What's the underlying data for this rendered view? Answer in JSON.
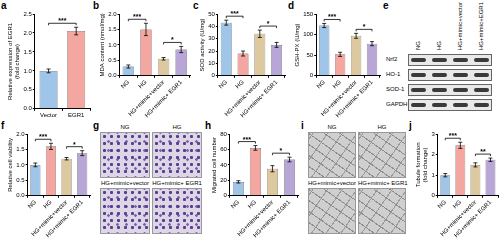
{
  "chart_data": [
    {
      "panel_label": "a",
      "type": "bar",
      "y_label": [
        "Relative expression of EGR1",
        "(fold change)"
      ],
      "categories": [
        "Vector",
        "EGR1"
      ],
      "values": [
        1.0,
        2.05
      ],
      "errors": [
        0.05,
        0.1
      ],
      "colors": [
        "#9fc5e8",
        "#f4a6a0"
      ],
      "ylim": [
        0,
        2.5
      ],
      "yticks": [
        {
          "value": 0,
          "label": "0.0"
        },
        0.5,
        {
          "value": 1,
          "label": "1.0"
        },
        1.5,
        {
          "value": 2,
          "label": "2.0"
        },
        2.5
      ],
      "grid": false,
      "annotations": [
        {
          "text": "***",
          "between": [
            "Vector",
            "EGR1"
          ]
        }
      ]
    },
    {
      "panel_label": "b",
      "type": "bar",
      "y_label": "MDA content (nmol/mg)",
      "categories": [
        "NG",
        "HG",
        "HG+mimic+vector",
        "HG+mimic+ EGR1"
      ],
      "values": [
        0.3,
        1.5,
        0.55,
        0.85
      ],
      "errors": [
        0.05,
        0.2,
        0.04,
        0.1
      ],
      "colors": [
        "#9fc5e8",
        "#f4a6a0",
        "#dcc9a0",
        "#b7a6d6"
      ],
      "ylim": [
        0,
        2
      ],
      "yticks": [
        {
          "value": 0,
          "label": "0.0"
        },
        0.5,
        {
          "value": 1,
          "label": "1.0"
        },
        1.5,
        {
          "value": 2,
          "label": "2.0"
        }
      ],
      "grid": false,
      "annotations": [
        {
          "text": "***",
          "between": [
            "NG",
            "HG"
          ]
        },
        {
          "text": "*",
          "between": [
            "HG+mimic+vector",
            "HG+mimic+ EGR1"
          ]
        }
      ]
    },
    {
      "panel_label": "c",
      "type": "bar",
      "y_label": "SOD activity (U/mg)",
      "categories": [
        "NG",
        "HG",
        "HG+mimic+vector",
        "HG+mimic+ EGR1"
      ],
      "values": [
        43,
        18,
        34,
        25
      ],
      "errors": [
        2,
        2,
        3,
        2
      ],
      "colors": [
        "#9fc5e8",
        "#f4a6a0",
        "#dcc9a0",
        "#b7a6d6"
      ],
      "ylim": [
        0,
        50
      ],
      "yticks": [
        0,
        10,
        20,
        30,
        40,
        50
      ],
      "grid": false,
      "annotations": [
        {
          "text": "***",
          "between": [
            "NG",
            "HG"
          ]
        },
        {
          "text": "*",
          "between": [
            "HG+mimic+vector",
            "HG+mimic+ EGR1"
          ]
        }
      ]
    },
    {
      "panel_label": "d",
      "type": "bar",
      "y_label": "GSH-PX (U/mg)",
      "categories": [
        "NG",
        "HG",
        "HG+mimic+vector",
        "HG+mimic+ EGR1"
      ],
      "values": [
        122,
        52,
        97,
        78
      ],
      "errors": [
        5,
        5,
        6,
        5
      ],
      "colors": [
        "#9fc5e8",
        "#f4a6a0",
        "#dcc9a0",
        "#b7a6d6"
      ],
      "ylim": [
        0,
        150
      ],
      "yticks": [
        0,
        50,
        100,
        150
      ],
      "grid": false,
      "annotations": [
        {
          "text": "***",
          "between": [
            "NG",
            "HG"
          ]
        },
        {
          "text": "*",
          "between": [
            "HG+mimic+vector",
            "HG+mimic+ EGR1"
          ]
        }
      ]
    },
    {
      "panel_label": "f",
      "type": "bar",
      "y_label": "Relative cell viability",
      "categories": [
        "NG",
        "HG",
        "HG+mimic+vector",
        "HG+mimic+ EGR1"
      ],
      "values": [
        1.0,
        1.6,
        1.2,
        1.38
      ],
      "errors": [
        0.06,
        0.1,
        0.04,
        0.08
      ],
      "colors": [
        "#9fc5e8",
        "#f4a6a0",
        "#dcc9a0",
        "#b7a6d6"
      ],
      "ylim": [
        0,
        2
      ],
      "yticks": [
        {
          "value": 0,
          "label": "0.0"
        },
        0.5,
        {
          "value": 1,
          "label": "1.0"
        },
        1.5,
        {
          "value": 2,
          "label": "2.0"
        }
      ],
      "grid": false,
      "annotations": [
        {
          "text": "***",
          "between": [
            "NG",
            "HG"
          ]
        },
        {
          "text": "*",
          "between": [
            "HG+mimic+vector",
            "HG+mimic+ EGR1"
          ]
        }
      ]
    },
    {
      "panel_label": "h",
      "type": "bar",
      "y_label": "Migrated cell number",
      "categories": [
        "NG",
        "HG",
        "HG+mimic+vector",
        "HG+mimic+ EGR1"
      ],
      "values": [
        18,
        62,
        35,
        47
      ],
      "errors": [
        1.5,
        3,
        4,
        3
      ],
      "colors": [
        "#9fc5e8",
        "#f4a6a0",
        "#dcc9a0",
        "#b7a6d6"
      ],
      "ylim": [
        0,
        80
      ],
      "yticks": [
        0,
        20,
        40,
        60,
        80
      ],
      "grid": false,
      "annotations": [
        {
          "text": "***",
          "between": [
            "NG",
            "HG"
          ]
        },
        {
          "text": "*",
          "between": [
            "HG+mimic+vector",
            "HG+mimic+ EGR1"
          ]
        }
      ]
    },
    {
      "panel_label": "j",
      "type": "bar",
      "y_label": [
        "Tubule formation",
        "(fold change)"
      ],
      "categories": [
        "NG",
        "HG",
        "HG+mimic+vector",
        "HG+mimic+ EGR1"
      ],
      "values": [
        1.0,
        2.45,
        1.5,
        1.75
      ],
      "errors": [
        0.08,
        0.15,
        0.1,
        0.08
      ],
      "colors": [
        "#9fc5e8",
        "#f4a6a0",
        "#dcc9a0",
        "#b7a6d6"
      ],
      "ylim": [
        0,
        3
      ],
      "yticks": [
        0,
        1,
        2,
        3
      ],
      "grid": false,
      "annotations": [
        {
          "text": "***",
          "between": [
            "NG",
            "HG"
          ]
        },
        {
          "text": "**",
          "between": [
            "HG+mimic+vector",
            "HG+mimic+ EGR1"
          ]
        }
      ]
    }
  ],
  "image_panels": [
    {
      "panel_label": "e",
      "kind": "blot",
      "lanes": [
        "NG",
        "HG",
        "HG+mimic+vector",
        "HG+mimic+EGR1"
      ],
      "bands": [
        "Nrf2",
        "HO-1",
        "SOD-1",
        "GAPDH"
      ]
    },
    {
      "panel_label": "g",
      "kind": "micrograph",
      "labels": [
        "NG",
        "HG",
        "HG+mimic+vector",
        "HG+mimic+ EGR1"
      ]
    },
    {
      "panel_label": "i",
      "kind": "tube_formation",
      "labels": [
        "NG",
        "HG",
        "HG+mimic+vector",
        "HG+mimic+ EGR1"
      ]
    }
  ]
}
